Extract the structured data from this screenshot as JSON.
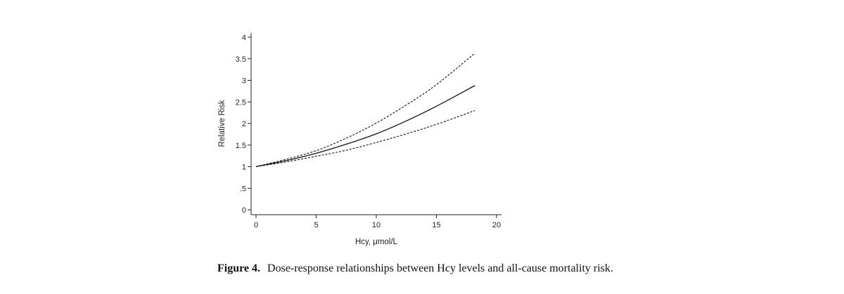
{
  "chart_data": {
    "type": "line",
    "xlabel": "Hcy, μmol/L",
    "ylabel": "Relative Risk",
    "xlim": [
      0,
      20
    ],
    "ylim": [
      0,
      4
    ],
    "x_ticks": [
      0,
      5,
      10,
      15,
      20
    ],
    "x_tick_labels": [
      "0",
      "5",
      "10",
      "15",
      "20"
    ],
    "y_ticks": [
      0,
      0.5,
      1,
      1.5,
      2,
      2.5,
      3,
      3.5,
      4
    ],
    "y_tick_labels": [
      "0",
      ".5",
      "1",
      "1.5",
      "2",
      "2.5",
      "3",
      "3.5",
      "4"
    ],
    "grid": false,
    "series": [
      {
        "style": "solid",
        "color": "#111111",
        "x": [
          0,
          2.5,
          5,
          7.5,
          10,
          12.5,
          15,
          18.2
        ],
        "y": [
          1.0,
          1.14,
          1.31,
          1.52,
          1.76,
          2.06,
          2.4,
          2.88
        ]
      },
      {
        "style": "dashed",
        "color": "#111111",
        "x": [
          0,
          2.5,
          5,
          7.5,
          10,
          12.5,
          15,
          18.2
        ],
        "y": [
          1.0,
          1.17,
          1.37,
          1.66,
          2.01,
          2.43,
          2.9,
          3.63
        ]
      },
      {
        "style": "dashed",
        "color": "#111111",
        "x": [
          0,
          2.5,
          5,
          7.5,
          10,
          12.5,
          15,
          18.2
        ],
        "y": [
          1.0,
          1.11,
          1.24,
          1.38,
          1.56,
          1.76,
          1.98,
          2.3
        ]
      }
    ]
  },
  "caption": {
    "label": "Figure 4.",
    "text": "Dose-response relationships between Hcy levels and all-cause mortality risk."
  }
}
